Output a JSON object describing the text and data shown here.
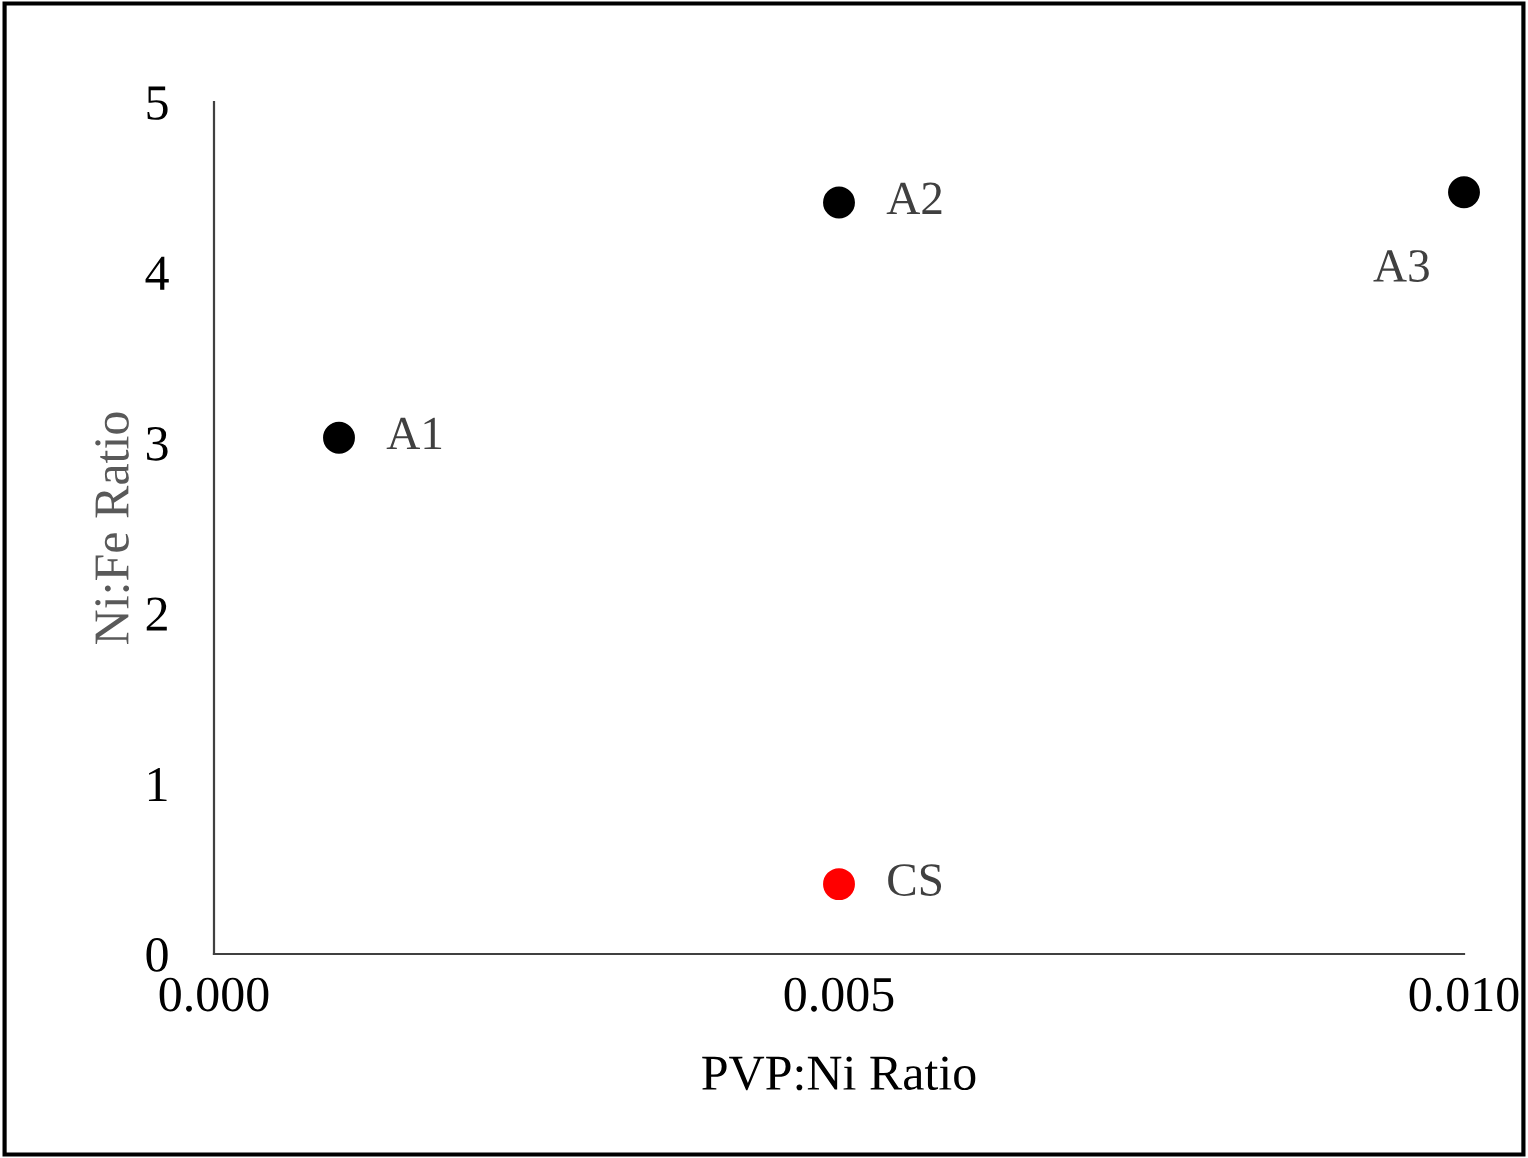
{
  "chart_data": {
    "type": "scatter",
    "xlabel": "PVP:Ni Ratio",
    "ylabel": "Ni:Fe Ratio",
    "series": [
      {
        "color": "#000000",
        "x": [
          0.001,
          0.005,
          0.01
        ],
        "values": [
          3.03,
          4.41,
          4.47
        ]
      },
      {
        "color": "#ff0000",
        "x": [
          0.005
        ],
        "values": [
          0.41
        ]
      }
    ],
    "annotations": [
      {
        "text": "A1",
        "x": 0.001,
        "y": 3.03
      },
      {
        "text": "A2",
        "x": 0.005,
        "y": 4.41
      },
      {
        "text": "A3",
        "x": 0.01,
        "y": 4.47
      },
      {
        "text": "CS",
        "x": 0.005,
        "y": 0.41
      }
    ],
    "marker": "circle",
    "grid": false,
    "legend": false,
    "xlim": [
      0,
      0.01
    ],
    "xticks": [
      {
        "value": 0,
        "label": "0.000"
      },
      {
        "value": 0.005,
        "label": "0.005"
      },
      {
        "value": 0.01,
        "label": "0.010"
      }
    ],
    "ylim": [
      0,
      5
    ],
    "yticks": [
      0,
      1,
      2,
      3,
      4,
      5
    ]
  }
}
